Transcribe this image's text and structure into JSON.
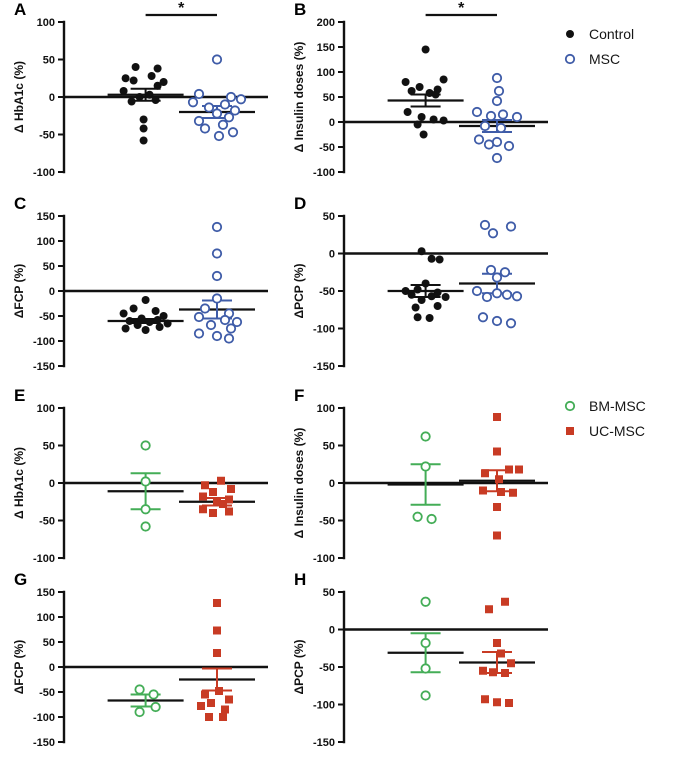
{
  "colors": {
    "black": "#111111",
    "blue": "#3F5CA8",
    "green": "#44AD57",
    "red": "#C83B24"
  },
  "legends": [
    {
      "items": [
        {
          "label": "Control",
          "marker": "circle-filled",
          "color": "#111111"
        },
        {
          "label": "MSC",
          "marker": "circle-open",
          "color": "#3F5CA8"
        }
      ]
    },
    {
      "items": [
        {
          "label": "BM-MSC",
          "marker": "circle-open",
          "color": "#44AD57"
        },
        {
          "label": "UC-MSC",
          "marker": "square-filled",
          "color": "#C83B24"
        }
      ]
    }
  ],
  "chart_data": [
    {
      "panel": "A",
      "type": "scatter",
      "ylabel": "Δ HbA1c (%)",
      "ylim": [
        -100,
        100
      ],
      "yticks": [
        100,
        50,
        0,
        -50,
        -100
      ],
      "significance": "*",
      "groups": [
        {
          "name": "Control",
          "marker": "circle-filled",
          "color": "#111111",
          "mean": 3,
          "sem": 8,
          "values": [
            40,
            38,
            28,
            25,
            22,
            20,
            15,
            8,
            3,
            0,
            -4,
            -6,
            -30,
            -42,
            -58
          ],
          "jitter": [
            -0.25,
            0.3,
            0.15,
            -0.5,
            -0.3,
            0.45,
            0.3,
            -0.55,
            0.1,
            -0.15,
            0.25,
            -0.35,
            -0.05,
            -0.05,
            -0.05
          ]
        },
        {
          "name": "MSC",
          "marker": "circle-open",
          "color": "#3F5CA8",
          "mean": -20,
          "sem": 8,
          "values": [
            50,
            4,
            0,
            -3,
            -7,
            -10,
            -14,
            -18,
            -22,
            -27,
            -32,
            -37,
            -42,
            -47,
            -52
          ],
          "jitter": [
            0.0,
            -0.45,
            0.35,
            0.6,
            -0.6,
            0.2,
            -0.2,
            0.45,
            0.0,
            0.3,
            -0.45,
            0.15,
            -0.3,
            0.4,
            0.05
          ]
        }
      ]
    },
    {
      "panel": "B",
      "type": "scatter",
      "ylabel": "Δ Insulin doses (%)",
      "ylim": [
        -100,
        200
      ],
      "yticks": [
        200,
        150,
        100,
        50,
        0,
        -50,
        -100
      ],
      "significance": "*",
      "groups": [
        {
          "name": "Control",
          "marker": "circle-filled",
          "color": "#111111",
          "mean": 43,
          "sem": 12,
          "values": [
            145,
            85,
            80,
            70,
            65,
            62,
            58,
            55,
            20,
            10,
            5,
            3,
            -5,
            -25
          ],
          "jitter": [
            0.0,
            0.45,
            -0.5,
            -0.15,
            0.3,
            -0.35,
            0.1,
            0.25,
            -0.45,
            -0.1,
            0.2,
            0.45,
            -0.2,
            -0.05
          ]
        },
        {
          "name": "MSC",
          "marker": "circle-open",
          "color": "#3F5CA8",
          "mean": -8,
          "sem": 12,
          "values": [
            88,
            62,
            42,
            20,
            15,
            12,
            10,
            -8,
            -12,
            -35,
            -40,
            -45,
            -48,
            -72
          ],
          "jitter": [
            0.0,
            0.05,
            0.0,
            -0.5,
            0.15,
            -0.15,
            0.5,
            -0.3,
            0.1,
            -0.45,
            0.0,
            -0.2,
            0.3,
            0.0
          ]
        }
      ]
    },
    {
      "panel": "C",
      "type": "scatter",
      "ylabel": "ΔFCP (%)",
      "ylim": [
        -150,
        150
      ],
      "yticks": [
        150,
        100,
        50,
        0,
        -50,
        -100,
        -150
      ],
      "groups": [
        {
          "name": "Control",
          "marker": "circle-filled",
          "color": "#111111",
          "mean": -60,
          "sem": 4,
          "values": [
            -18,
            -35,
            -40,
            -45,
            -50,
            -55,
            -58,
            -60,
            -62,
            -65,
            -68,
            -72,
            -75,
            -78
          ],
          "jitter": [
            0.0,
            -0.3,
            0.25,
            -0.55,
            0.45,
            -0.1,
            0.3,
            -0.4,
            0.1,
            0.55,
            -0.2,
            0.35,
            -0.5,
            0.0
          ]
        },
        {
          "name": "MSC",
          "marker": "circle-open",
          "color": "#3F5CA8",
          "mean": -37,
          "sem": 18,
          "values": [
            128,
            75,
            30,
            -15,
            -35,
            -45,
            -52,
            -58,
            -62,
            -68,
            -75,
            -85,
            -90,
            -95
          ],
          "jitter": [
            0.0,
            0.0,
            0.0,
            0.0,
            -0.3,
            0.3,
            -0.45,
            0.2,
            0.5,
            -0.15,
            0.35,
            -0.45,
            0.0,
            0.3
          ]
        }
      ]
    },
    {
      "panel": "D",
      "type": "scatter",
      "ylabel": "ΔPCP (%)",
      "ylim": [
        -150,
        50
      ],
      "yticks": [
        50,
        0,
        -50,
        -100,
        -150
      ],
      "groups": [
        {
          "name": "Control",
          "marker": "circle-filled",
          "color": "#111111",
          "mean": -50,
          "sem": 8,
          "values": [
            3,
            -7,
            -8,
            -40,
            -48,
            -50,
            -52,
            -55,
            -57,
            -58,
            -62,
            -70,
            -72,
            -85,
            -86
          ],
          "jitter": [
            -0.1,
            0.15,
            0.35,
            0.0,
            -0.2,
            -0.5,
            0.3,
            -0.35,
            0.15,
            0.5,
            -0.1,
            0.3,
            -0.25,
            -0.2,
            0.1
          ]
        },
        {
          "name": "MSC",
          "marker": "circle-open",
          "color": "#3F5CA8",
          "mean": -40,
          "sem": 13,
          "values": [
            38,
            36,
            27,
            -22,
            -25,
            -32,
            -50,
            -53,
            -55,
            -57,
            -58,
            -85,
            -90,
            -93
          ],
          "jitter": [
            -0.3,
            0.35,
            -0.1,
            -0.15,
            0.2,
            0.0,
            -0.5,
            0.0,
            0.25,
            0.5,
            -0.25,
            -0.35,
            0.0,
            0.35
          ]
        }
      ]
    },
    {
      "panel": "E",
      "type": "scatter",
      "ylabel": "Δ HbA1c (%)",
      "ylim": [
        -100,
        100
      ],
      "yticks": [
        100,
        50,
        0,
        -50,
        -100
      ],
      "groups": [
        {
          "name": "BM-MSC",
          "marker": "circle-open",
          "color": "#44AD57",
          "mean": -11,
          "sem": 24,
          "values": [
            50,
            2,
            -35,
            -58
          ],
          "jitter": [
            0.0,
            0.0,
            0.0,
            0.0
          ]
        },
        {
          "name": "UC-MSC",
          "marker": "square-filled",
          "color": "#C83B24",
          "mean": -25,
          "sem": 5,
          "values": [
            3,
            -3,
            -8,
            -12,
            -18,
            -22,
            -25,
            -28,
            -35,
            -38,
            -40
          ],
          "jitter": [
            0.1,
            -0.3,
            0.35,
            -0.1,
            -0.35,
            0.3,
            0.0,
            0.15,
            -0.35,
            0.3,
            -0.1
          ]
        }
      ]
    },
    {
      "panel": "F",
      "type": "scatter",
      "ylabel": "Δ Insulin doses (%)",
      "ylim": [
        -100,
        100
      ],
      "yticks": [
        100,
        50,
        0,
        -50,
        -100
      ],
      "groups": [
        {
          "name": "BM-MSC",
          "marker": "circle-open",
          "color": "#44AD57",
          "mean": -2,
          "sem": 27,
          "values": [
            62,
            22,
            -45,
            -48
          ],
          "jitter": [
            0.0,
            0.0,
            -0.2,
            0.15
          ]
        },
        {
          "name": "UC-MSC",
          "marker": "square-filled",
          "color": "#C83B24",
          "mean": 3,
          "sem": 14,
          "values": [
            88,
            42,
            18,
            18,
            13,
            5,
            -10,
            -12,
            -13,
            -32,
            -70
          ],
          "jitter": [
            0.0,
            0.0,
            0.3,
            0.55,
            -0.3,
            0.05,
            -0.35,
            0.1,
            0.4,
            0.0,
            0.0
          ]
        }
      ]
    },
    {
      "panel": "G",
      "type": "scatter",
      "ylabel": "ΔFCP (%)",
      "ylim": [
        -150,
        150
      ],
      "yticks": [
        150,
        100,
        50,
        0,
        -50,
        -100,
        -150
      ],
      "groups": [
        {
          "name": "BM-MSC",
          "marker": "circle-open",
          "color": "#44AD57",
          "mean": -67,
          "sem": 12,
          "values": [
            -45,
            -55,
            -80,
            -90
          ],
          "jitter": [
            -0.15,
            0.2,
            0.25,
            -0.15
          ]
        },
        {
          "name": "UC-MSC",
          "marker": "square-filled",
          "color": "#C83B24",
          "mean": -25,
          "sem": 22,
          "values": [
            128,
            73,
            28,
            -48,
            -55,
            -65,
            -72,
            -78,
            -85,
            -100,
            -100
          ],
          "jitter": [
            0.0,
            0.0,
            0.0,
            0.05,
            -0.3,
            0.3,
            -0.15,
            -0.4,
            0.2,
            -0.2,
            0.15
          ]
        }
      ]
    },
    {
      "panel": "H",
      "type": "scatter",
      "ylabel": "ΔPCP (%)",
      "ylim": [
        -150,
        50
      ],
      "yticks": [
        50,
        0,
        -50,
        -100,
        -150
      ],
      "groups": [
        {
          "name": "BM-MSC",
          "marker": "circle-open",
          "color": "#44AD57",
          "mean": -31,
          "sem": 26,
          "values": [
            37,
            -18,
            -52,
            -88
          ],
          "jitter": [
            0.0,
            0.0,
            0.0,
            0.0
          ]
        },
        {
          "name": "UC-MSC",
          "marker": "square-filled",
          "color": "#C83B24",
          "mean": -44,
          "sem": 14,
          "values": [
            37,
            27,
            -18,
            -32,
            -45,
            -55,
            -57,
            -58,
            -93,
            -97,
            -98
          ],
          "jitter": [
            0.2,
            -0.2,
            0.0,
            0.1,
            0.35,
            -0.35,
            -0.1,
            0.2,
            -0.3,
            0.0,
            0.3
          ]
        }
      ]
    }
  ]
}
